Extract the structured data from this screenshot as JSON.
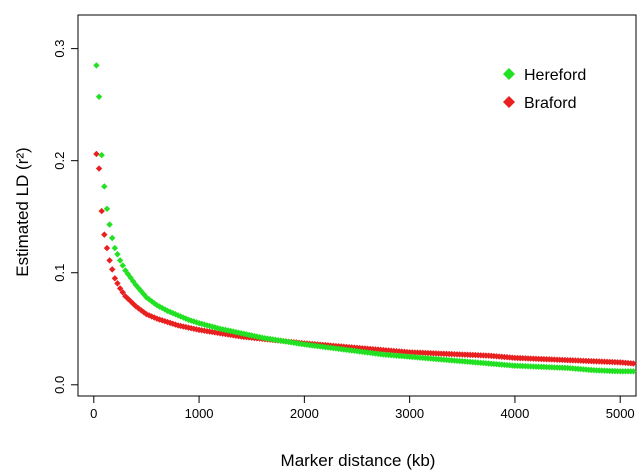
{
  "chart_data": {
    "type": "scatter",
    "xlabel": "Marker distance (kb)",
    "ylabel": "Estimated LD (r²)",
    "xlim": [
      -150,
      5150
    ],
    "ylim": [
      -0.01,
      0.33
    ],
    "xticks": [
      0,
      1000,
      2000,
      3000,
      4000,
      5000
    ],
    "xtick_labels": [
      "0",
      "1000",
      "2000",
      "3000",
      "4000",
      "5000"
    ],
    "yticks": [
      0.0,
      0.1,
      0.2,
      0.3
    ],
    "ytick_labels": [
      "0.0",
      "0.1",
      "0.2",
      "0.3"
    ],
    "legend_position": "top-right",
    "grid": false,
    "series": [
      {
        "name": "Hereford",
        "color": "#22e022",
        "x": [
          25,
          50,
          75,
          100,
          125,
          150,
          175,
          200,
          250,
          300,
          400,
          500,
          600,
          700,
          800,
          900,
          1000,
          1200,
          1400,
          1600,
          1800,
          2000,
          2250,
          2500,
          2750,
          3000,
          3250,
          3500,
          3750,
          4000,
          4250,
          4500,
          4750,
          5000,
          5125
        ],
        "y": [
          0.285,
          0.257,
          0.205,
          0.177,
          0.157,
          0.143,
          0.131,
          0.122,
          0.111,
          0.102,
          0.089,
          0.078,
          0.071,
          0.066,
          0.062,
          0.058,
          0.055,
          0.05,
          0.046,
          0.042,
          0.039,
          0.036,
          0.033,
          0.03,
          0.027,
          0.025,
          0.023,
          0.021,
          0.019,
          0.017,
          0.016,
          0.015,
          0.013,
          0.012,
          0.012
        ]
      },
      {
        "name": "Braford",
        "color": "#e82020",
        "x": [
          25,
          50,
          75,
          100,
          125,
          150,
          175,
          200,
          250,
          300,
          400,
          500,
          600,
          700,
          800,
          900,
          1000,
          1200,
          1400,
          1600,
          1800,
          2000,
          2250,
          2500,
          2750,
          3000,
          3250,
          3500,
          3750,
          4000,
          4250,
          4500,
          4750,
          5000,
          5125
        ],
        "y": [
          0.206,
          0.193,
          0.155,
          0.134,
          0.122,
          0.111,
          0.103,
          0.095,
          0.086,
          0.079,
          0.07,
          0.063,
          0.059,
          0.056,
          0.053,
          0.051,
          0.049,
          0.046,
          0.043,
          0.041,
          0.039,
          0.037,
          0.035,
          0.033,
          0.031,
          0.029,
          0.028,
          0.027,
          0.026,
          0.024,
          0.023,
          0.022,
          0.021,
          0.02,
          0.019
        ]
      }
    ]
  }
}
